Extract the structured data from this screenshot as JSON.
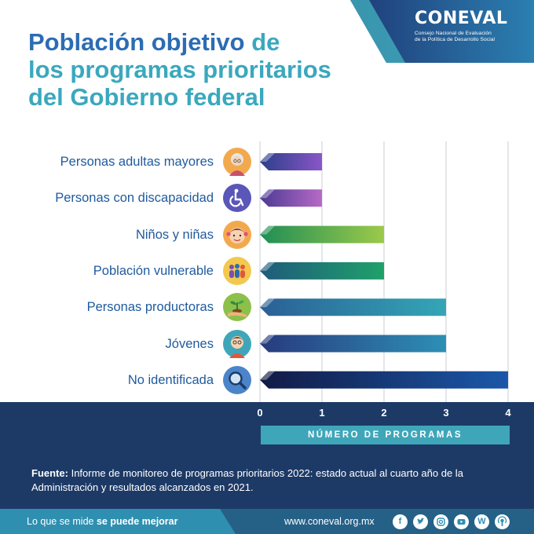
{
  "header": {
    "logo": {
      "wordmark": "CONEVAL",
      "subtitle_line1": "Consejo Nacional de Evaluación",
      "subtitle_line2": "de la Política de Desarrollo Social"
    },
    "title": {
      "highlight": "Población objetivo",
      "rest1": "de",
      "line2": "los programas prioritarios",
      "line3": "del Gobierno federal"
    }
  },
  "chart_data": {
    "type": "bar",
    "orientation": "horizontal",
    "categories": [
      "Personas adultas mayores",
      "Personas con discapacidad",
      "Niños y niñas",
      "Población vulnerable",
      "Personas productoras",
      "Jóvenes",
      "No identificada"
    ],
    "values": [
      1,
      1,
      2,
      2,
      3,
      3,
      4
    ],
    "icons": [
      "elderly-person-icon",
      "wheelchair-icon",
      "children-icon",
      "group-people-icon",
      "plant-hand-icon",
      "young-person-icon",
      "magnifier-icon"
    ],
    "xlabel": "NÚMERO DE PROGRAMAS",
    "xticks": [
      "0",
      "1",
      "2",
      "3",
      "4"
    ],
    "xlim": [
      0,
      4
    ],
    "grid": true,
    "bar_gradients": [
      [
        "#2b3f8a",
        "#8a56c7"
      ],
      [
        "#4a3a93",
        "#b66ac6"
      ],
      [
        "#1f8e56",
        "#9cc94a"
      ],
      [
        "#1f5a7c",
        "#1fa16a"
      ],
      [
        "#2a5f95",
        "#34a6b6"
      ],
      [
        "#283a7e",
        "#2d8fb5"
      ],
      [
        "#121a45",
        "#1b58a9"
      ]
    ]
  },
  "source": {
    "label": "Fuente:",
    "text": "Informe de monitoreo de programas prioritarios 2022: estado actual al cuarto año de la Administración y resultados alcanzados en 2021."
  },
  "footer": {
    "slogan_start": "Lo que se mide",
    "slogan_bold": "se puede mejorar",
    "url": "www.coneval.org.mx",
    "social": [
      "facebook-icon",
      "twitter-icon",
      "instagram-icon",
      "youtube-icon",
      "wordpress-icon",
      "podcast-icon"
    ]
  },
  "colors": {
    "navy": "#1d3a66",
    "teal": "#3fa6b9",
    "blue_title": "#2c6cb3",
    "teal_title": "#3aa8bd"
  }
}
